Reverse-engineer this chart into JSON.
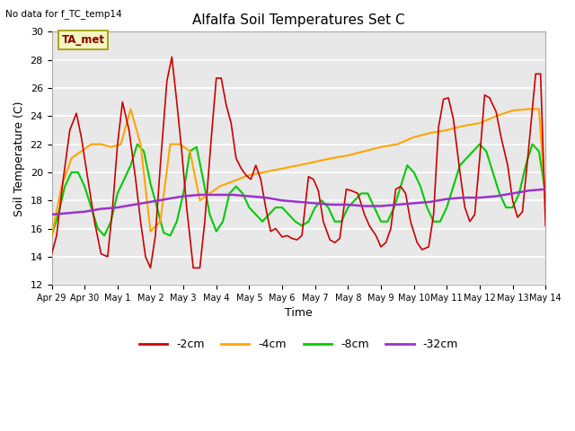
{
  "title": "Alfalfa Soil Temperatures Set C",
  "xlabel": "Time",
  "ylabel": "Soil Temperature (C)",
  "ylim": [
    12,
    30
  ],
  "no_data_text": "No data for f_TC_temp14",
  "ta_met_label": "TA_met",
  "x_labels": [
    "Apr 29",
    "Apr 30",
    "May 1",
    "May 2",
    "May 3",
    "May 4",
    "May 5",
    "May 6",
    "May 7",
    "May 8",
    "May 9",
    "May 10",
    "May 11",
    "May 12",
    "May 13",
    "May 14"
  ],
  "x_ticks": [
    0,
    1,
    2,
    3,
    4,
    5,
    6,
    7,
    8,
    9,
    10,
    11,
    12,
    13,
    14,
    15
  ],
  "red_x": [
    0,
    0.15,
    0.35,
    0.55,
    0.75,
    0.9,
    1.1,
    1.3,
    1.5,
    1.7,
    1.85,
    2.0,
    2.15,
    2.35,
    2.55,
    2.7,
    2.85,
    3.0,
    3.15,
    3.3,
    3.5,
    3.65,
    3.8,
    3.95,
    4.1,
    4.3,
    4.5,
    4.65,
    4.85,
    5.0,
    5.15,
    5.3,
    5.45,
    5.6,
    5.75,
    5.9,
    6.05,
    6.2,
    6.35,
    6.5,
    6.65,
    6.8,
    7.0,
    7.15,
    7.3,
    7.45,
    7.6,
    7.8,
    7.95,
    8.1,
    8.25,
    8.45,
    8.6,
    8.75,
    8.95,
    9.1,
    9.3,
    9.5,
    9.65,
    9.85,
    10.0,
    10.15,
    10.3,
    10.45,
    10.6,
    10.75,
    10.9,
    11.1,
    11.25,
    11.45,
    11.6,
    11.75,
    11.9,
    12.05,
    12.2,
    12.4,
    12.55,
    12.7,
    12.85,
    13.0,
    13.15,
    13.3,
    13.5,
    13.65,
    13.85,
    14.0,
    14.15,
    14.3,
    14.5,
    14.7,
    14.85,
    15.0
  ],
  "red_y": [
    14.2,
    15.5,
    19.5,
    23.0,
    24.2,
    22.5,
    19.5,
    16.5,
    14.2,
    14.0,
    17.5,
    22.0,
    25.0,
    23.0,
    19.5,
    16.5,
    14.0,
    13.2,
    15.5,
    20.5,
    26.5,
    28.2,
    25.0,
    21.5,
    17.5,
    13.2,
    13.2,
    16.5,
    22.5,
    26.7,
    26.7,
    24.8,
    23.5,
    21.0,
    20.3,
    19.8,
    19.5,
    20.5,
    19.5,
    17.5,
    15.8,
    16.0,
    15.4,
    15.5,
    15.3,
    15.2,
    15.5,
    19.7,
    19.5,
    18.7,
    16.5,
    15.2,
    15.0,
    15.3,
    18.8,
    18.7,
    18.5,
    17.0,
    16.2,
    15.5,
    14.7,
    15.0,
    16.0,
    18.8,
    19.0,
    18.5,
    16.5,
    15.0,
    14.5,
    14.7,
    17.0,
    23.2,
    25.2,
    25.3,
    23.8,
    20.0,
    17.5,
    16.5,
    17.0,
    21.0,
    25.5,
    25.3,
    24.3,
    22.5,
    20.5,
    18.0,
    16.8,
    17.2,
    22.0,
    27.0,
    27.0,
    16.2
  ],
  "orange_x": [
    0,
    0.3,
    0.6,
    0.9,
    1.2,
    1.5,
    1.8,
    2.1,
    2.4,
    2.7,
    3.0,
    3.3,
    3.6,
    3.9,
    4.2,
    4.5,
    4.8,
    5.1,
    6.0,
    7.5,
    8.5,
    9.0,
    9.5,
    10.0,
    10.5,
    11.0,
    11.5,
    12.0,
    12.5,
    13.0,
    13.5,
    14.0,
    14.5,
    14.8,
    15.0
  ],
  "orange_y": [
    15.5,
    19.0,
    21.0,
    21.5,
    22.0,
    22.0,
    21.8,
    22.0,
    24.5,
    22.0,
    15.8,
    16.5,
    22.0,
    22.0,
    21.5,
    18.0,
    18.5,
    19.0,
    19.8,
    20.5,
    21.0,
    21.2,
    21.5,
    21.8,
    22.0,
    22.5,
    22.8,
    23.0,
    23.3,
    23.5,
    24.0,
    24.4,
    24.5,
    24.5,
    18.0
  ],
  "green_x": [
    0,
    0.2,
    0.4,
    0.6,
    0.8,
    1.0,
    1.2,
    1.4,
    1.6,
    1.8,
    2.0,
    2.2,
    2.4,
    2.6,
    2.8,
    3.0,
    3.2,
    3.4,
    3.6,
    3.8,
    4.0,
    4.2,
    4.4,
    4.6,
    4.8,
    5.0,
    5.2,
    5.4,
    5.6,
    5.8,
    6.0,
    6.2,
    6.4,
    6.6,
    6.8,
    7.0,
    7.2,
    7.4,
    7.6,
    7.8,
    8.0,
    8.2,
    8.4,
    8.6,
    8.8,
    9.0,
    9.2,
    9.4,
    9.6,
    9.8,
    10.0,
    10.2,
    10.4,
    10.6,
    10.8,
    11.0,
    11.2,
    11.4,
    11.6,
    11.8,
    12.0,
    12.2,
    12.4,
    12.6,
    12.8,
    13.0,
    13.2,
    13.4,
    13.6,
    13.8,
    14.0,
    14.2,
    14.4,
    14.6,
    14.8,
    15.0
  ],
  "green_y": [
    15.5,
    17.0,
    19.0,
    20.0,
    20.0,
    19.0,
    17.5,
    16.0,
    15.5,
    16.5,
    18.5,
    19.5,
    20.5,
    22.0,
    21.5,
    19.2,
    17.5,
    15.7,
    15.5,
    16.5,
    18.5,
    21.5,
    21.8,
    19.5,
    17.0,
    15.8,
    16.5,
    18.5,
    19.0,
    18.5,
    17.5,
    17.0,
    16.5,
    17.0,
    17.5,
    17.5,
    17.0,
    16.5,
    16.2,
    16.5,
    17.5,
    18.0,
    17.5,
    16.5,
    16.5,
    17.5,
    18.0,
    18.5,
    18.5,
    17.5,
    16.5,
    16.5,
    17.5,
    19.0,
    20.5,
    20.0,
    19.0,
    17.5,
    16.5,
    16.5,
    17.5,
    19.0,
    20.5,
    21.0,
    21.5,
    22.0,
    21.5,
    20.0,
    18.5,
    17.5,
    17.5,
    18.5,
    20.5,
    22.0,
    21.5,
    18.5
  ],
  "purple_x": [
    0,
    0.5,
    1.0,
    1.5,
    2.0,
    2.5,
    3.0,
    3.5,
    4.0,
    4.5,
    5.0,
    5.5,
    6.0,
    6.5,
    7.0,
    7.5,
    8.0,
    8.5,
    9.0,
    9.5,
    10.0,
    10.5,
    11.0,
    11.5,
    12.0,
    12.5,
    13.0,
    13.5,
    14.0,
    14.5,
    15.0
  ],
  "purple_y": [
    17.0,
    17.1,
    17.2,
    17.4,
    17.5,
    17.7,
    17.9,
    18.1,
    18.3,
    18.4,
    18.4,
    18.4,
    18.3,
    18.2,
    18.0,
    17.9,
    17.8,
    17.7,
    17.7,
    17.6,
    17.6,
    17.7,
    17.8,
    17.9,
    18.1,
    18.2,
    18.2,
    18.3,
    18.5,
    18.7,
    18.8
  ]
}
